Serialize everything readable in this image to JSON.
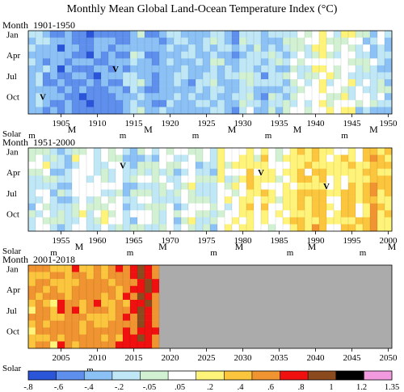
{
  "chart_data": {
    "type": "heatmap",
    "title": "Monthly Mean Global Land-Ocean Temperature Index (°C)",
    "row_axis_title": "Month",
    "row_labels": [
      "Jan",
      "Apr",
      "Jul",
      "Oct"
    ],
    "solar_label": "Solar",
    "panels": [
      {
        "title": "1901-1950",
        "xlim": [
          1901,
          1950
        ],
        "xticks": [
          1905,
          1910,
          1915,
          1920,
          1925,
          1930,
          1935,
          1940,
          1945,
          1950
        ],
        "solar": [
          {
            "year": 1901,
            "mark": "m"
          },
          {
            "year": 1906.5,
            "mark": "M"
          },
          {
            "year": 1913.5,
            "mark": "m"
          },
          {
            "year": 1917,
            "mark": "M"
          },
          {
            "year": 1923.5,
            "mark": "m"
          },
          {
            "year": 1928.5,
            "mark": "M"
          },
          {
            "year": 1933.5,
            "mark": "m"
          },
          {
            "year": 1937.5,
            "mark": "M"
          },
          {
            "year": 1944,
            "mark": "m"
          },
          {
            "year": 1948,
            "mark": "M"
          }
        ],
        "volcanoes": [
          {
            "year": 1902.5,
            "month": 10
          },
          {
            "year": 1912.5,
            "month": 6
          }
        ],
        "annual_means": [
          -0.26,
          -0.23,
          -0.32,
          -0.4,
          -0.48,
          -0.38,
          -0.43,
          -0.45,
          -0.46,
          -0.45,
          -0.44,
          -0.4,
          -0.37,
          -0.33,
          -0.15,
          -0.12,
          -0.35,
          -0.42,
          -0.28,
          -0.27,
          -0.19,
          -0.26,
          -0.27,
          -0.27,
          -0.21,
          -0.09,
          -0.2,
          -0.2,
          -0.35,
          -0.14,
          -0.09,
          -0.15,
          -0.28,
          -0.12,
          -0.19,
          -0.15,
          -0.03,
          0.0,
          -0.02,
          0.12,
          0.19,
          0.06,
          0.08,
          0.2,
          0.06,
          -0.07,
          -0.04,
          -0.09,
          -0.09,
          -0.17
        ]
      },
      {
        "title": "1951-2000",
        "xlim": [
          1951,
          2000
        ],
        "xticks": [
          1955,
          1960,
          1965,
          1970,
          1975,
          1980,
          1985,
          1990,
          1995,
          2000
        ],
        "solar": [
          {
            "year": 1954,
            "mark": "m"
          },
          {
            "year": 1957.5,
            "mark": "M"
          },
          {
            "year": 1964.5,
            "mark": "m"
          },
          {
            "year": 1969,
            "mark": "M"
          },
          {
            "year": 1976,
            "mark": "m"
          },
          {
            "year": 1979.5,
            "mark": "M"
          },
          {
            "year": 1986.5,
            "mark": "m"
          },
          {
            "year": 1989.5,
            "mark": "M"
          },
          {
            "year": 1996.5,
            "mark": "m"
          },
          {
            "year": 2000.5,
            "mark": "M"
          }
        ],
        "volcanoes": [
          {
            "year": 1963.5,
            "month": 3
          },
          {
            "year": 1982.5,
            "month": 4
          },
          {
            "year": 1991.5,
            "month": 6
          }
        ],
        "annual_means": [
          -0.07,
          0.01,
          0.08,
          -0.13,
          -0.14,
          -0.19,
          0.05,
          0.06,
          0.03,
          -0.03,
          0.06,
          0.03,
          0.05,
          -0.2,
          -0.11,
          -0.06,
          -0.02,
          -0.08,
          0.05,
          0.03,
          -0.08,
          0.01,
          0.16,
          -0.07,
          -0.01,
          -0.1,
          0.18,
          0.07,
          0.16,
          0.26,
          0.32,
          0.14,
          0.31,
          0.16,
          0.12,
          0.18,
          0.32,
          0.39,
          0.27,
          0.45,
          0.41,
          0.22,
          0.23,
          0.31,
          0.45,
          0.33,
          0.46,
          0.61,
          0.38,
          0.39
        ]
      },
      {
        "title": "2001-2018",
        "xlim": [
          2001,
          2050
        ],
        "xticks": [
          2005,
          2010,
          2015,
          2020,
          2025,
          2030,
          2035,
          2040,
          2045,
          2050
        ],
        "solar": [
          {
            "year": 2009,
            "mark": "m"
          }
        ],
        "volcanoes": [],
        "annual_means": [
          0.54,
          0.63,
          0.62,
          0.54,
          0.68,
          0.64,
          0.66,
          0.54,
          0.65,
          0.72,
          0.61,
          0.64,
          0.68,
          0.75,
          0.9,
          1.01,
          0.92,
          0.83
        ],
        "no_data_from": 2018.5
      }
    ],
    "colorbar": {
      "bounds": [
        -0.8,
        -0.6,
        -0.4,
        -0.2,
        -0.05,
        0.05,
        0.2,
        0.4,
        0.6,
        0.8,
        1,
        1.2,
        1.35
      ],
      "tick_labels": [
        "-.8",
        "-.6",
        "-.4",
        "-.2",
        "-.05",
        ".05",
        ".2",
        ".4",
        ".6",
        ".8",
        "1",
        "1.2",
        "1.35"
      ],
      "colors": [
        "#2a55d9",
        "#5f8fec",
        "#8cc1f5",
        "#bfe7f5",
        "#d2f0d2",
        "#ffffff",
        "#fff37a",
        "#fbc63d",
        "#ef9430",
        "#f01010",
        "#8a4a1e",
        "#000000",
        "#f29ae0"
      ],
      "missing_color": "#ababab"
    }
  }
}
